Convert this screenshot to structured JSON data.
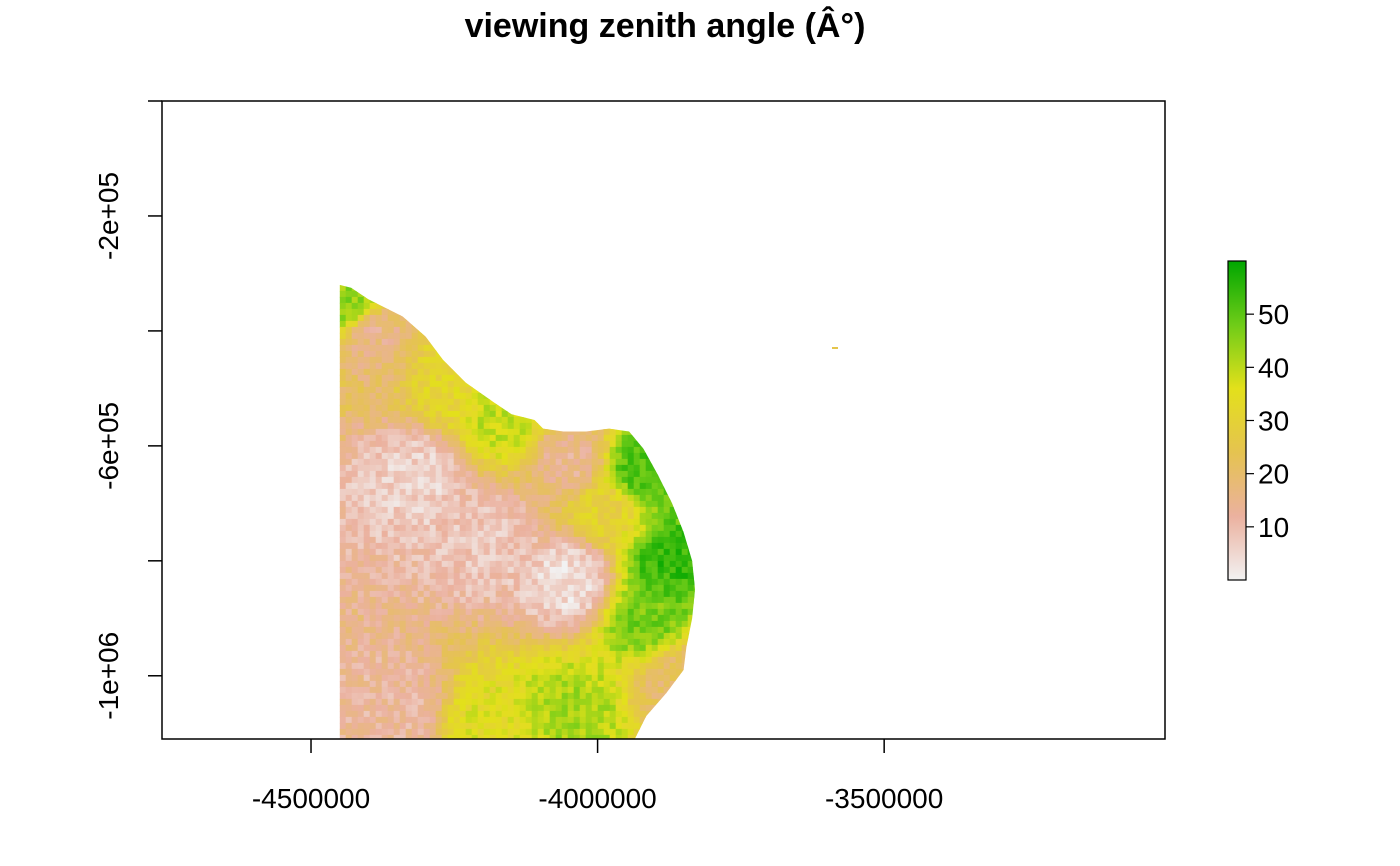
{
  "chart_data": {
    "type": "heatmap",
    "title": "viewing zenith angle (Â°)",
    "xlabel": "",
    "ylabel": "",
    "xlim": [
      -4760000,
      -3010000
    ],
    "ylim": [
      -1110000,
      0
    ],
    "x_ticks": [
      -4500000,
      -4000000,
      -3500000
    ],
    "x_tick_labels": [
      "-4500000",
      "-4000000",
      "-3500000"
    ],
    "y_ticks": [
      -1000000,
      -800000,
      -600000,
      -400000,
      -200000,
      0
    ],
    "y_tick_labels": [
      "-1e+06",
      "",
      "-6e+05",
      "",
      "-2e+05",
      ""
    ],
    "legend": {
      "placement": "right",
      "range": [
        0,
        60
      ],
      "ticks": [
        10,
        20,
        30,
        40,
        50
      ],
      "tick_labels": [
        "10",
        "20",
        "30",
        "40",
        "50"
      ],
      "colors": [
        "#f2f2f2",
        "#ebb19f",
        "#e5c350",
        "#e3e01b",
        "#6fcc18",
        "#00a600"
      ]
    },
    "raster_extent": {
      "x": [
        -4450000,
        -3830000
      ],
      "y": [
        -1110000,
        -320000
      ]
    },
    "outline": [
      [
        -4450000,
        -1110000
      ],
      [
        -4450000,
        -320000
      ],
      [
        -4430000,
        -325000
      ],
      [
        -4400000,
        -345000
      ],
      [
        -4340000,
        -375000
      ],
      [
        -4300000,
        -410000
      ],
      [
        -4270000,
        -450000
      ],
      [
        -4230000,
        -490000
      ],
      [
        -4180000,
        -525000
      ],
      [
        -4150000,
        -545000
      ],
      [
        -4110000,
        -555000
      ],
      [
        -4095000,
        -570000
      ],
      [
        -4060000,
        -575000
      ],
      [
        -4020000,
        -575000
      ],
      [
        -3980000,
        -570000
      ],
      [
        -3945000,
        -575000
      ],
      [
        -3920000,
        -605000
      ],
      [
        -3895000,
        -650000
      ],
      [
        -3870000,
        -700000
      ],
      [
        -3850000,
        -750000
      ],
      [
        -3835000,
        -800000
      ],
      [
        -3830000,
        -850000
      ],
      [
        -3835000,
        -900000
      ],
      [
        -3845000,
        -950000
      ],
      [
        -3850000,
        -990000
      ],
      [
        -3880000,
        -1030000
      ],
      [
        -3915000,
        -1070000
      ],
      [
        -3935000,
        -1110000
      ]
    ],
    "zones": [
      {
        "x": -4400000,
        "y": -400000,
        "value": 15
      },
      {
        "x": -4250000,
        "y": -480000,
        "value": 32
      },
      {
        "x": -4320000,
        "y": -650000,
        "value": 6
      },
      {
        "x": -4200000,
        "y": -760000,
        "value": 8
      },
      {
        "x": -4050000,
        "y": -620000,
        "value": 14
      },
      {
        "x": -4050000,
        "y": -830000,
        "value": 4
      },
      {
        "x": -3990000,
        "y": -700000,
        "value": 30
      },
      {
        "x": -3930000,
        "y": -640000,
        "value": 52
      },
      {
        "x": -3880000,
        "y": -800000,
        "value": 54
      },
      {
        "x": -3920000,
        "y": -900000,
        "value": 47
      },
      {
        "x": -4050000,
        "y": -1060000,
        "value": 42
      },
      {
        "x": -4200000,
        "y": -1080000,
        "value": 35
      },
      {
        "x": -4350000,
        "y": -1050000,
        "value": 12
      },
      {
        "x": -3870000,
        "y": -1000000,
        "value": 20
      },
      {
        "x": -4440000,
        "y": -350000,
        "value": 45
      },
      {
        "x": -4170000,
        "y": -540000,
        "value": 40
      }
    ]
  }
}
